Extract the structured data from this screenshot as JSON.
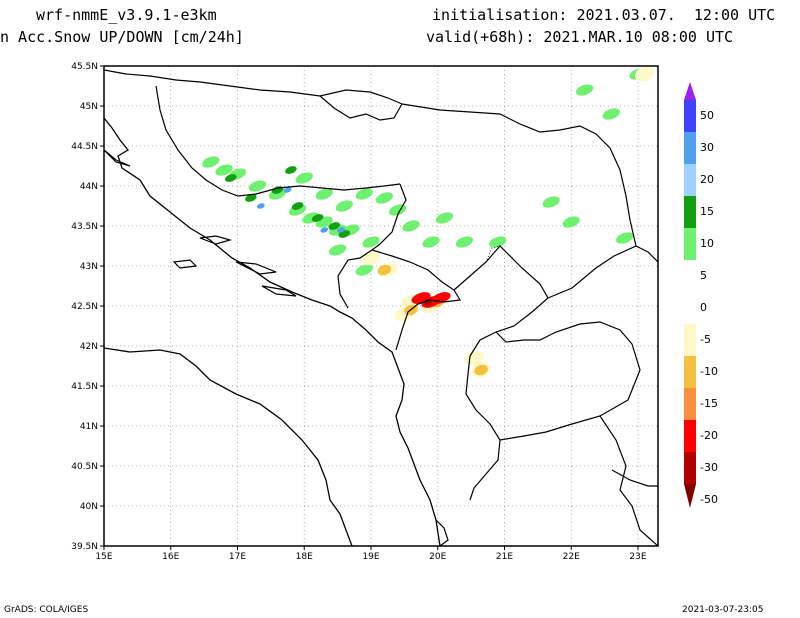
{
  "header": {
    "model": "wrf-nmmE_v3.9.1-e3km",
    "variable": "n Acc.Snow UP/DOWN [cm/24h]",
    "init": "initialisation: 2021.03.07.  12:00 UTC",
    "valid": "valid(+68h): 2021.MAR.10 08:00 UTC"
  },
  "footer": {
    "credit": "GrADS: COLA/IGES",
    "timestamp": "2021-03-07-23:05"
  },
  "axes": {
    "lat_labels": [
      "45.5N",
      "45N",
      "44.5N",
      "44N",
      "43.5N",
      "43N",
      "42.5N",
      "42N",
      "41.5N",
      "41N",
      "40.5N",
      "40N",
      "39.5N"
    ],
    "lat_values": [
      45.5,
      45,
      44.5,
      44,
      43.5,
      43,
      42.5,
      42,
      41.5,
      41,
      40.5,
      40,
      39.5
    ],
    "lon_labels": [
      "15E",
      "16E",
      "17E",
      "18E",
      "19E",
      "20E",
      "21E",
      "22E",
      "23E"
    ],
    "lon_values": [
      15,
      16,
      17,
      18,
      19,
      20,
      21,
      22,
      23
    ],
    "lat_range": [
      39.5,
      45.5
    ],
    "lon_range": [
      15,
      23.3
    ]
  },
  "colorbar": {
    "labels": [
      "50",
      "30",
      "20",
      "15",
      "10",
      "5",
      "0",
      "-5",
      "-10",
      "-15",
      "-20",
      "-30",
      "-50"
    ],
    "colors": [
      "#a020f0",
      "#4040ff",
      "#50a0f0",
      "#a0d0ff",
      "#10a010",
      "#70f070",
      "#ffffff",
      "#ffffff",
      "#fff8c8",
      "#f4c040",
      "#f89040",
      "#ff0000",
      "#b00000",
      "#800000"
    ]
  },
  "blobs": {
    "light_green": [
      [
        17.3,
        44.0
      ],
      [
        17.6,
        43.9
      ],
      [
        17.9,
        43.7
      ],
      [
        18.1,
        43.6
      ],
      [
        18.3,
        43.55
      ],
      [
        18.5,
        43.45
      ],
      [
        18.7,
        43.45
      ],
      [
        17.0,
        44.15
      ],
      [
        16.8,
        44.2
      ],
      [
        16.6,
        44.3
      ],
      [
        18.0,
        44.1
      ],
      [
        18.3,
        43.9
      ],
      [
        18.6,
        43.75
      ],
      [
        18.9,
        43.9
      ],
      [
        19.2,
        43.85
      ],
      [
        19.4,
        43.7
      ],
      [
        19.6,
        43.5
      ],
      [
        19.9,
        43.3
      ],
      [
        19.0,
        43.3
      ],
      [
        20.4,
        43.3
      ],
      [
        20.9,
        43.3
      ],
      [
        21.7,
        43.8
      ],
      [
        22.0,
        43.55
      ],
      [
        22.8,
        43.35
      ],
      [
        22.6,
        44.9
      ],
      [
        22.2,
        45.2
      ],
      [
        23.0,
        45.4
      ],
      [
        20.1,
        43.6
      ],
      [
        18.5,
        43.2
      ],
      [
        18.9,
        42.95
      ]
    ],
    "dark_green": [
      [
        16.9,
        44.1
      ],
      [
        17.2,
        43.85
      ],
      [
        17.6,
        43.95
      ],
      [
        17.9,
        43.75
      ],
      [
        18.2,
        43.6
      ],
      [
        18.45,
        43.5
      ],
      [
        18.6,
        43.4
      ],
      [
        17.8,
        44.2
      ]
    ],
    "blue": [
      [
        17.75,
        43.95
      ],
      [
        17.35,
        43.75
      ],
      [
        18.3,
        43.45
      ],
      [
        18.55,
        43.45
      ]
    ],
    "yellow": [
      [
        19.25,
        42.95
      ],
      [
        19.6,
        42.55
      ],
      [
        19.9,
        42.5
      ],
      [
        19.5,
        42.4
      ],
      [
        20.55,
        41.85
      ],
      [
        20.65,
        41.7
      ],
      [
        19.0,
        43.1
      ],
      [
        23.1,
        45.4
      ]
    ],
    "orange": [
      [
        19.2,
        42.95
      ],
      [
        19.75,
        42.6
      ],
      [
        20.0,
        42.55
      ],
      [
        19.6,
        42.45
      ],
      [
        20.65,
        41.7
      ]
    ],
    "red": [
      [
        19.75,
        42.6
      ],
      [
        19.9,
        42.55
      ],
      [
        20.05,
        42.6
      ]
    ],
    "dark_red": [
      [
        19.85,
        42.55
      ]
    ]
  }
}
